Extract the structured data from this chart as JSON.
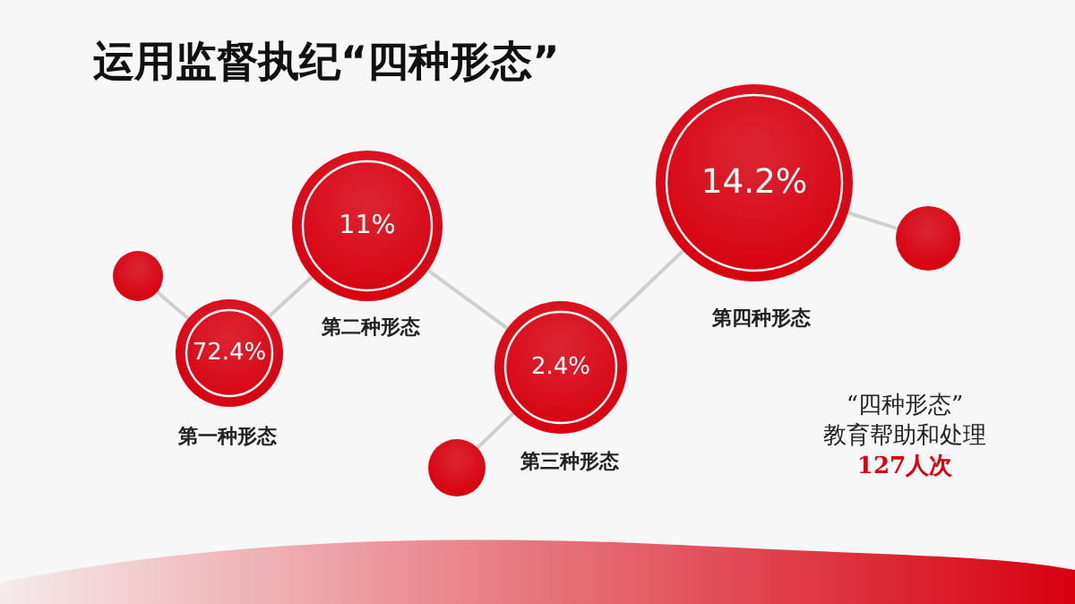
{
  "chart_data": {
    "type": "other",
    "title": "运用监督执纪“四种形态”",
    "categories": [
      "第一种形态",
      "第二种形态",
      "第三种形态",
      "第四种形态"
    ],
    "values": [
      72.4,
      11,
      2.4,
      14.2
    ],
    "value_labels": [
      "72.4%",
      "11%",
      "2.4%",
      "14.2%"
    ],
    "color": "#d7000f",
    "annotations": [
      "“四种形态”",
      "教育帮助和处理",
      "127人次"
    ]
  }
}
